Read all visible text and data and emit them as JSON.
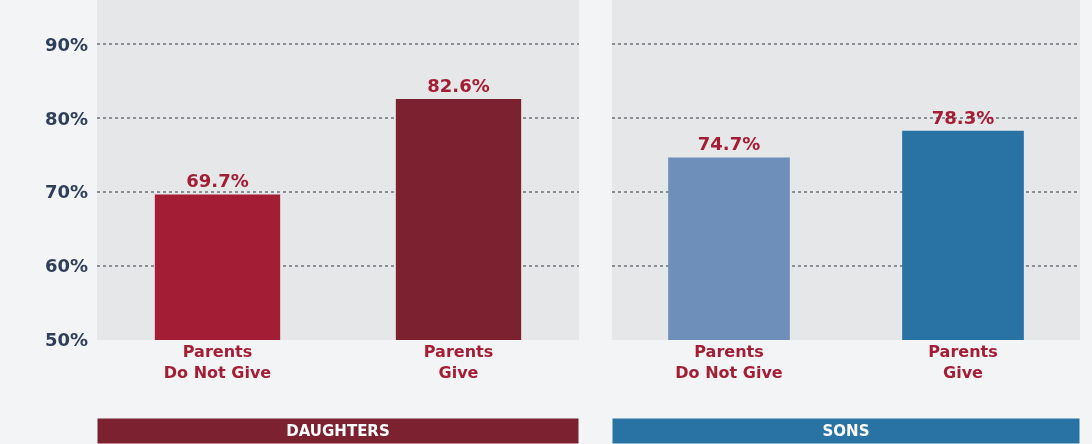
{
  "chart_data": [
    {
      "type": "bar",
      "xlabel": "DAUGHTERS",
      "categories": [
        "Parents\nDo Not Give",
        "Parents\nGive"
      ],
      "values": [
        69.7,
        82.6
      ],
      "colors": [
        "#a31d35",
        "#7b2130"
      ],
      "value_labels": [
        "69.7%",
        "82.6%"
      ],
      "ylim": [
        50,
        96
      ],
      "yticks": [
        {
          "value": 50,
          "label": "50%"
        },
        {
          "value": 60,
          "label": "60%"
        },
        {
          "value": 70,
          "label": "70%"
        },
        {
          "value": 80,
          "label": "80%"
        },
        {
          "value": 90,
          "label": "90%"
        }
      ],
      "grid": "y"
    },
    {
      "type": "bar",
      "xlabel": "SONS",
      "categories": [
        "Parents\nDo Not Give",
        "Parents\nGive"
      ],
      "values": [
        74.7,
        78.3
      ],
      "colors": [
        "#6d8fba",
        "#2872a4"
      ],
      "value_labels": [
        "74.7%",
        "78.3%"
      ],
      "ylim": [
        50,
        96
      ],
      "yticks": [
        {
          "value": 50,
          "label": null
        },
        {
          "value": 60,
          "label": null
        },
        {
          "value": 70,
          "label": null
        },
        {
          "value": 80,
          "label": null
        },
        {
          "value": 90,
          "label": null
        }
      ],
      "grid": "y",
      "tick_labels": "x"
    }
  ]
}
